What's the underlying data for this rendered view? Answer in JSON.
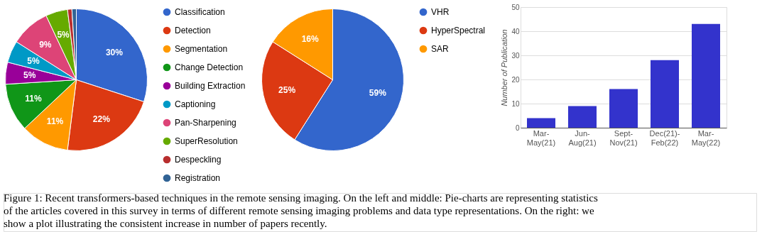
{
  "chart_data": [
    {
      "type": "pie",
      "categories": [
        "Classification",
        "Detection",
        "Segmentation",
        "Change Detection",
        "Building Extraction",
        "Captioning",
        "Pan-Sharpening",
        "SuperResolution",
        "Despeckling",
        "Registration"
      ],
      "values": [
        30,
        22,
        11,
        11,
        5,
        5,
        9,
        5,
        1,
        1
      ],
      "value_labels": [
        "30%",
        "22%",
        "11%",
        "11%",
        "5%",
        "5%",
        "9%",
        "5%",
        null,
        null
      ],
      "colors": [
        "#3366cc",
        "#dc3912",
        "#ff9900",
        "#109618",
        "#990099",
        "#0099c6",
        "#dd4477",
        "#66aa00",
        "#b82e2e",
        "#316395"
      ],
      "legend": "right"
    },
    {
      "type": "pie",
      "categories": [
        "VHR",
        "HyperSpectral",
        "SAR"
      ],
      "values": [
        59,
        25,
        16
      ],
      "value_labels": [
        "59%",
        "25%",
        "16%"
      ],
      "colors": [
        "#3366cc",
        "#dc3912",
        "#ff9900"
      ],
      "legend": "right"
    },
    {
      "type": "bar",
      "categories": [
        "Mar-May(21)",
        "Jun-Aug(21)",
        "Sept-Nov(21)",
        "Dec(21)-Feb(22)",
        "Mar-May(22)"
      ],
      "values": [
        4,
        9,
        16,
        28,
        43
      ],
      "color": "#3333cc",
      "ylabel": "Number of Publication",
      "ylim": [
        0,
        50
      ],
      "yticks": [
        0,
        10,
        20,
        30,
        40,
        50
      ],
      "grid": "y",
      "annotations": [
        "Figure 1: Recent transformers-based techniques in the remote sensing imaging. On the left and middle: Pie-charts are representing statistics of the articles covered in this survey in terms of different remote sensing imaging problems and data type representations. On the right: we show a plot illustrating the consistent increase in number of papers recently."
      ]
    }
  ]
}
